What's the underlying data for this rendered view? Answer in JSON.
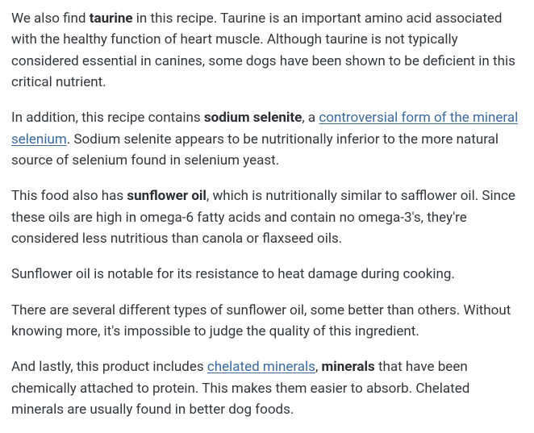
{
  "textColor": "#32373c",
  "boldColor": "#2a2e33",
  "linkColor": "#3a6aa0",
  "backgroundColor": "#ffffff",
  "fontSize": 17,
  "lineHeight": 1.55,
  "paragraphs": {
    "p1": {
      "t1": "We also find ",
      "b1": "taurine",
      "t2": " in this recipe. Taurine is an important amino acid associated with the healthy function of heart muscle. Although taurine is not typically considered essential in canines, some dogs have been shown to be deficient in this critical nutrient."
    },
    "p2": {
      "t1": "In addition, this recipe contains ",
      "b1": "sodium selenite",
      "t2": ", a ",
      "a1": "controversial form of the mineral selenium",
      "t3": ". Sodium selenite appears to be nutritionally inferior to the more natural source of selenium found in selenium yeast."
    },
    "p3": {
      "t1": "This food also has ",
      "b1": "sunflower oil",
      "t2": ", which is nutritionally similar to safflower oil. Since these oils are high in omega-6 fatty acids and contain no omega-3's, they're considered less nutritious than canola or flaxseed oils."
    },
    "p4": {
      "t1": "Sunflower oil is notable for its resistance to heat damage during cooking."
    },
    "p5": {
      "t1": "There are several different types of sunflower oil, some better than others. Without knowing more, it's impossible to judge the quality of this ingredient."
    },
    "p6": {
      "t1": "And lastly, this product includes ",
      "a1": "chelated minerals",
      "t2": ", ",
      "b1": "minerals",
      "t3": " that have been chemically attached to protein. This makes them easier to absorb. Chelated minerals are usually found in better dog foods."
    }
  }
}
